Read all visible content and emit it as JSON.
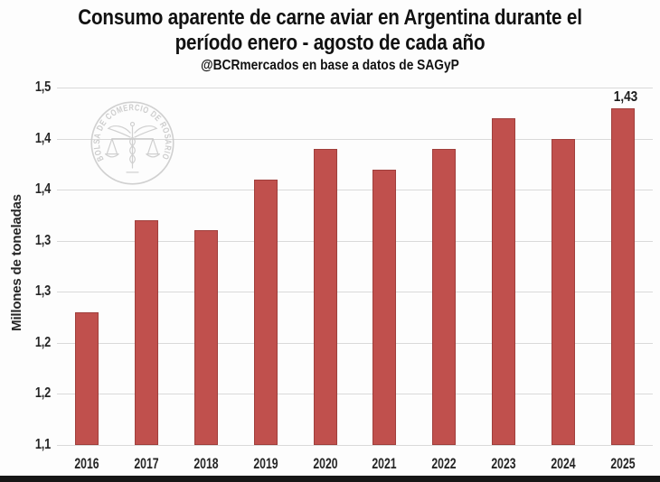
{
  "header": {
    "title_line1": "Consumo aparente de carne aviar en Argentina durante el",
    "title_line2": "período enero - agosto de cada año",
    "subtitle": "@BCRmercados en base a datos de SAGyP"
  },
  "watermark": {
    "ring_text": "BOLSA DE COMERCIO DE ROSARIO",
    "color": "#c6c6c6"
  },
  "chart_data": {
    "type": "bar",
    "title": "Consumo aparente de carne aviar en Argentina durante el período enero - agosto de cada año",
    "subtitle": "@BCRmercados en base a datos de SAGyP",
    "xlabel": "",
    "ylabel": "Millones de toneladas",
    "categories": [
      "2016",
      "2017",
      "2018",
      "2019",
      "2020",
      "2021",
      "2022",
      "2023",
      "2024",
      "2025"
    ],
    "values": [
      1.23,
      1.32,
      1.31,
      1.36,
      1.39,
      1.37,
      1.39,
      1.42,
      1.4,
      1.43
    ],
    "bar_color": "#C0504D",
    "bar_edge_color": "#A03F3C",
    "grid": true,
    "gridline_color": "#d9d9d9",
    "legend": "none",
    "y_axis": {
      "min": 1.1,
      "top_gridline": 1.45,
      "tick_step": 0.05,
      "ticks": [
        {
          "value": 1.45,
          "label": "1,5"
        },
        {
          "value": 1.4,
          "label": "1,4"
        },
        {
          "value": 1.35,
          "label": "1,4"
        },
        {
          "value": 1.3,
          "label": "1,3"
        },
        {
          "value": 1.25,
          "label": "1,3"
        },
        {
          "value": 1.2,
          "label": "1,2"
        },
        {
          "value": 1.15,
          "label": "1,2"
        },
        {
          "value": 1.1,
          "label": "1,1"
        }
      ]
    },
    "data_labels": [
      {
        "category": "2025",
        "label": "1,43"
      }
    ]
  }
}
